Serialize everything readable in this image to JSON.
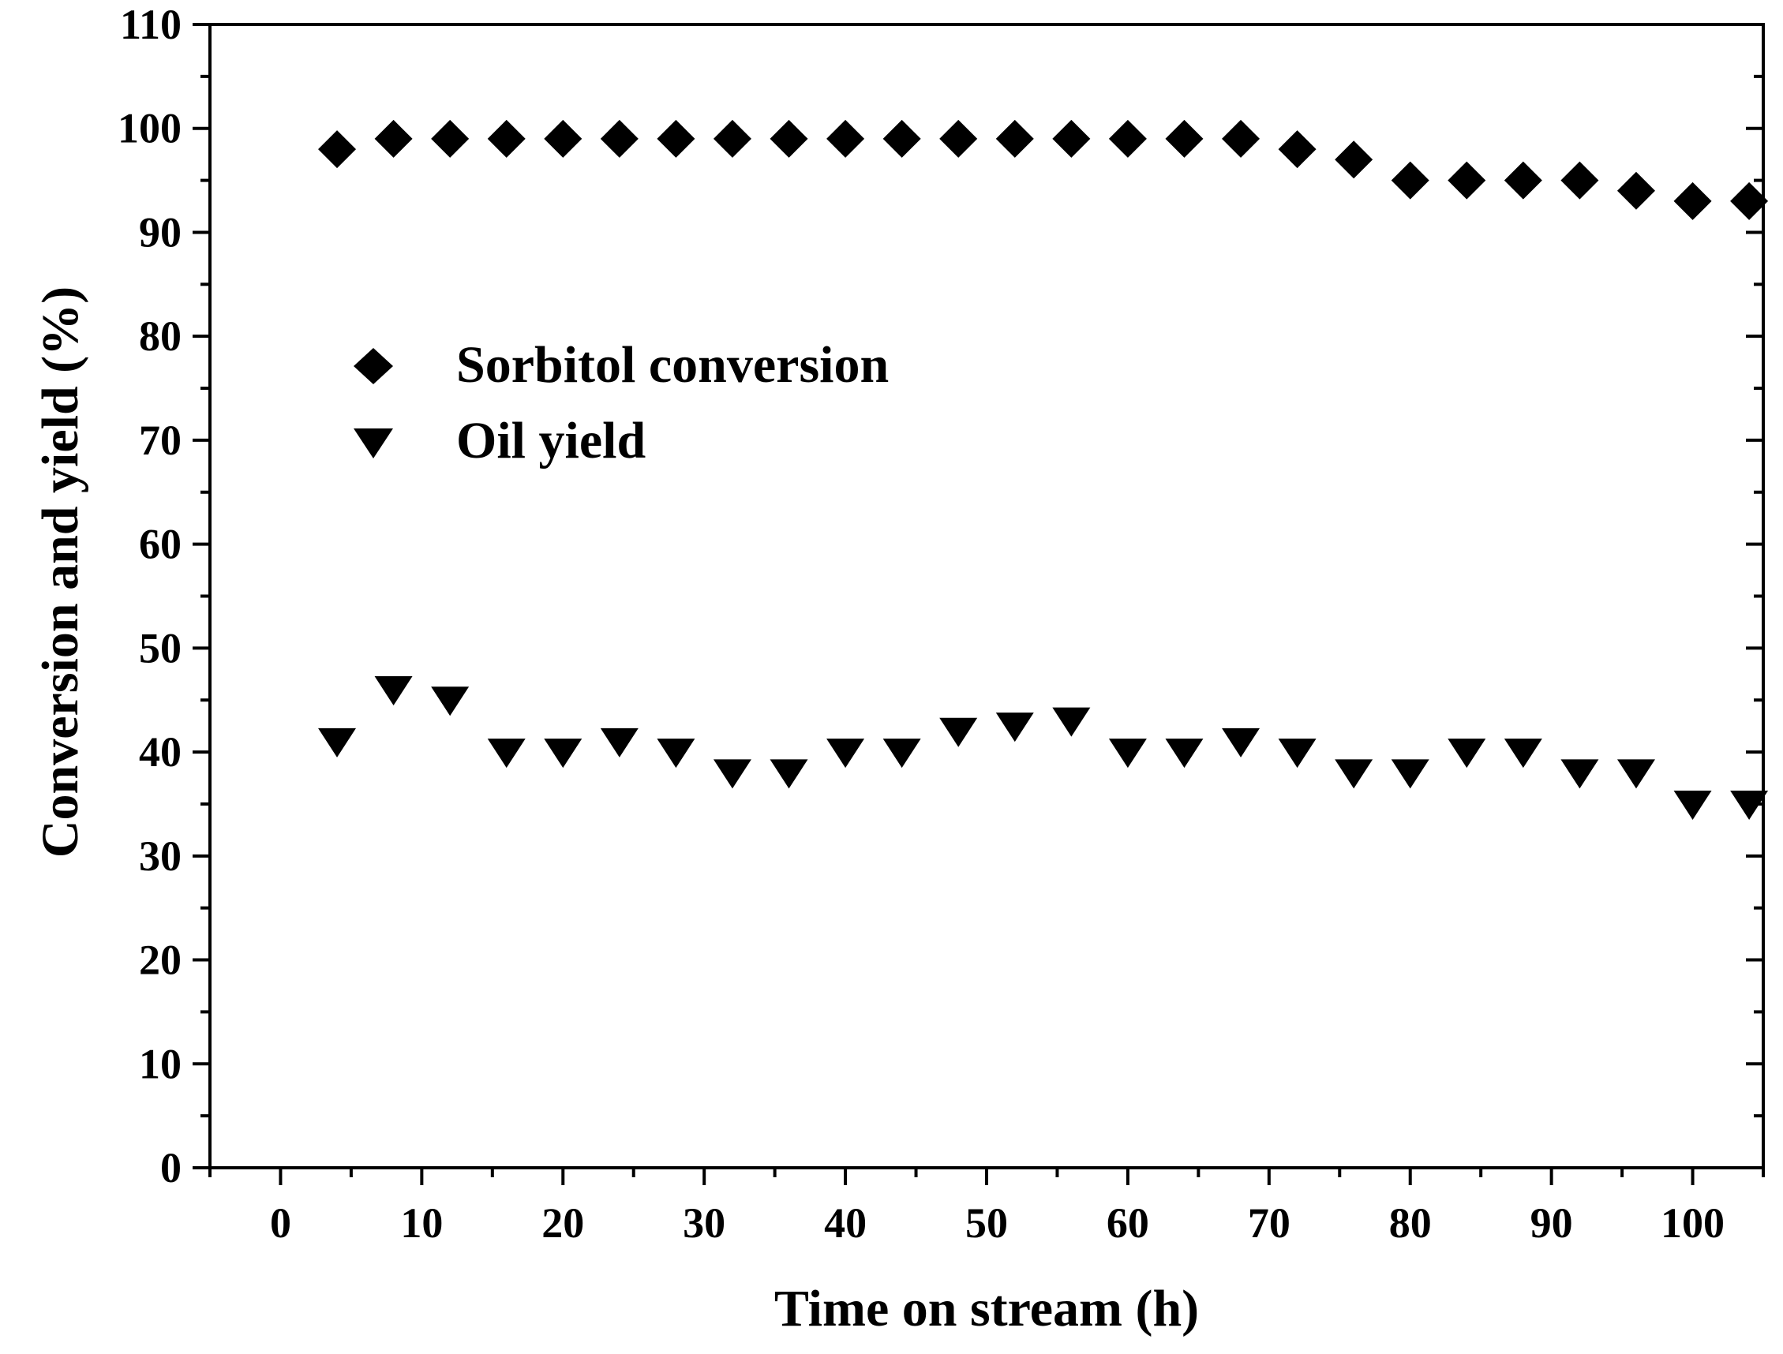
{
  "chart_data": {
    "type": "scatter",
    "title": "",
    "xlabel": "Time on stream (h)",
    "ylabel": "Conversion and yield (%)",
    "xlim": [
      -5,
      105
    ],
    "ylim": [
      0,
      110
    ],
    "xticks": [
      0,
      10,
      20,
      30,
      40,
      50,
      60,
      70,
      80,
      90,
      100
    ],
    "yticks": [
      0,
      10,
      20,
      30,
      40,
      50,
      60,
      70,
      80,
      90,
      100,
      110
    ],
    "grid": false,
    "legend_position": "upper-left",
    "series": [
      {
        "name": "Sorbitol conversion",
        "marker": "diamond",
        "color": "#000000",
        "x": [
          4,
          8,
          12,
          16,
          20,
          24,
          28,
          32,
          36,
          40,
          44,
          48,
          52,
          56,
          60,
          64,
          68,
          72,
          76,
          80,
          84,
          88,
          92,
          96,
          100,
          104
        ],
        "y": [
          98,
          99,
          99,
          99,
          99,
          99,
          99,
          99,
          99,
          99,
          99,
          99,
          99,
          99,
          99,
          99,
          99,
          98,
          97,
          95,
          95,
          95,
          95,
          94,
          93,
          93
        ]
      },
      {
        "name": "Oil yield",
        "marker": "triangle-down",
        "color": "#000000",
        "x": [
          4,
          8,
          12,
          16,
          20,
          24,
          28,
          32,
          36,
          40,
          44,
          48,
          52,
          56,
          60,
          64,
          68,
          72,
          76,
          80,
          84,
          88,
          92,
          96,
          100,
          104
        ],
        "y": [
          41,
          46,
          45,
          40,
          40,
          41,
          40,
          38,
          38,
          40,
          40,
          42,
          42.5,
          43,
          40,
          40,
          41,
          40,
          38,
          38,
          40,
          40,
          38,
          38,
          35,
          35
        ]
      }
    ]
  }
}
